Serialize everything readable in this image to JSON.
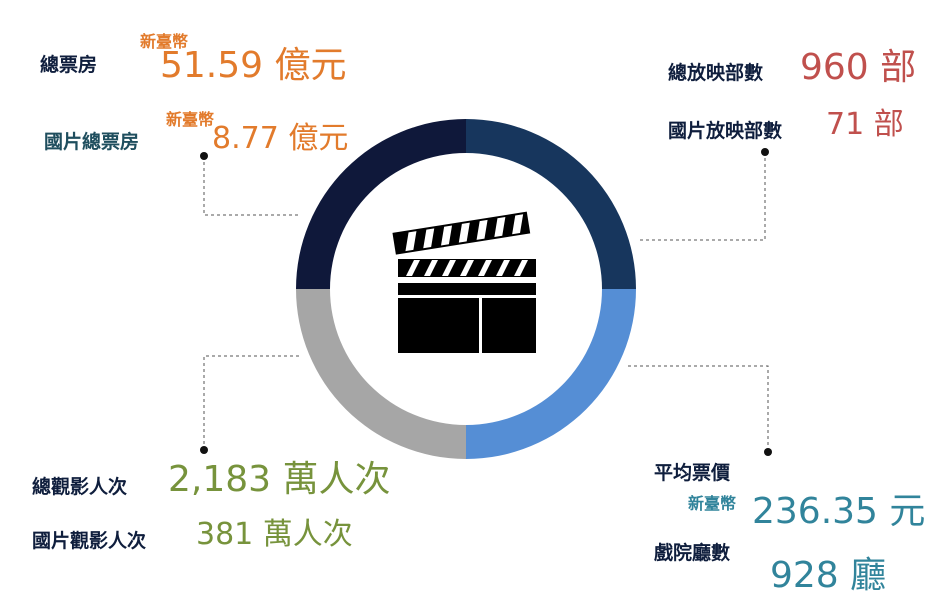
{
  "colors": {
    "navy": "#0f1e3d",
    "teal_label": "#1f4e5e",
    "orange": "#e27b2c",
    "red": "#c0504d",
    "green": "#77933c",
    "teal": "#31849b",
    "ring_top_left": "#0f183a",
    "ring_top_right": "#17365d",
    "ring_bottom_right": "#558ed5",
    "ring_bottom_left": "#a6a6a6"
  },
  "center_icon": "clapperboard-icon",
  "total_box_office": {
    "label": "總票房",
    "currency": "新臺幣",
    "value": "51.59 億元"
  },
  "domestic_box_office": {
    "label": "國片總票房",
    "currency": "新臺幣",
    "value": "8.77 億元"
  },
  "total_films": {
    "label": "總放映部數",
    "value": "960 部"
  },
  "domestic_films": {
    "label": "國片放映部數",
    "value": "71 部"
  },
  "total_admissions": {
    "label": "總觀影人次",
    "value": "2,183 萬人次"
  },
  "domestic_admissions": {
    "label": "國片觀影人次",
    "value": "381 萬人次"
  },
  "avg_ticket_price": {
    "label": "平均票價",
    "currency": "新臺幣",
    "value": "236.35 元"
  },
  "screens": {
    "label": "戲院廳數",
    "value": "928 廳"
  }
}
